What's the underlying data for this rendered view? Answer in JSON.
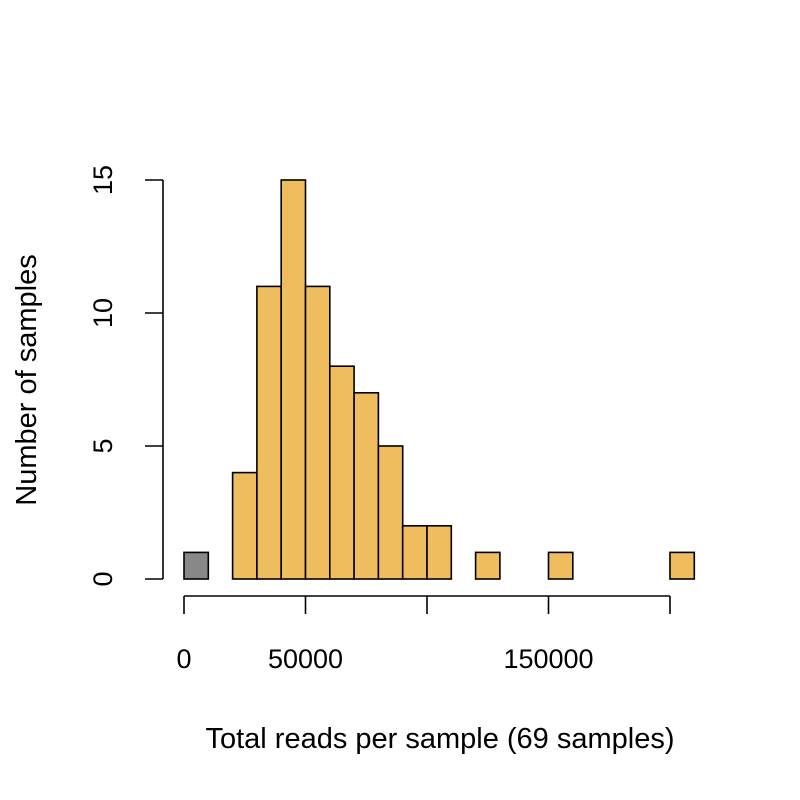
{
  "chart_data": {
    "type": "bar",
    "subtype": "histogram",
    "xlabel": "Total reads per sample (69 samples)",
    "ylabel": "Number of samples",
    "xlim": [
      0,
      210000
    ],
    "ylim": [
      0,
      15
    ],
    "x_ticks": [
      0,
      50000,
      100000,
      150000,
      200000
    ],
    "x_tick_labels": [
      "0",
      "50000",
      "",
      "150000",
      ""
    ],
    "y_ticks": [
      0,
      5,
      10,
      15
    ],
    "y_tick_labels": [
      "0",
      "5",
      "10",
      "15"
    ],
    "bin_width": 10000,
    "bins": [
      {
        "start": 0,
        "end": 10000,
        "count": 1,
        "color": "#888888"
      },
      {
        "start": 10000,
        "end": 20000,
        "count": 0,
        "color": "#F0BD5E"
      },
      {
        "start": 20000,
        "end": 30000,
        "count": 4,
        "color": "#F0BD5E"
      },
      {
        "start": 30000,
        "end": 40000,
        "count": 11,
        "color": "#F0BD5E"
      },
      {
        "start": 40000,
        "end": 50000,
        "count": 15,
        "color": "#F0BD5E"
      },
      {
        "start": 50000,
        "end": 60000,
        "count": 11,
        "color": "#F0BD5E"
      },
      {
        "start": 60000,
        "end": 70000,
        "count": 8,
        "color": "#F0BD5E"
      },
      {
        "start": 70000,
        "end": 80000,
        "count": 7,
        "color": "#F0BD5E"
      },
      {
        "start": 80000,
        "end": 90000,
        "count": 5,
        "color": "#F0BD5E"
      },
      {
        "start": 90000,
        "end": 100000,
        "count": 2,
        "color": "#F0BD5E"
      },
      {
        "start": 100000,
        "end": 110000,
        "count": 2,
        "color": "#F0BD5E"
      },
      {
        "start": 110000,
        "end": 120000,
        "count": 0,
        "color": "#F0BD5E"
      },
      {
        "start": 120000,
        "end": 130000,
        "count": 1,
        "color": "#F0BD5E"
      },
      {
        "start": 130000,
        "end": 140000,
        "count": 0,
        "color": "#F0BD5E"
      },
      {
        "start": 140000,
        "end": 150000,
        "count": 0,
        "color": "#F0BD5E"
      },
      {
        "start": 150000,
        "end": 160000,
        "count": 1,
        "color": "#F0BD5E"
      },
      {
        "start": 160000,
        "end": 170000,
        "count": 0,
        "color": "#F0BD5E"
      },
      {
        "start": 170000,
        "end": 180000,
        "count": 0,
        "color": "#F0BD5E"
      },
      {
        "start": 180000,
        "end": 190000,
        "count": 0,
        "color": "#F0BD5E"
      },
      {
        "start": 190000,
        "end": 200000,
        "count": 0,
        "color": "#F0BD5E"
      },
      {
        "start": 200000,
        "end": 210000,
        "count": 1,
        "color": "#F0BD5E"
      }
    ],
    "colors": {
      "bar_fill": "#F0BD5E",
      "low_bin_fill": "#888888",
      "outline": "#000000"
    }
  }
}
